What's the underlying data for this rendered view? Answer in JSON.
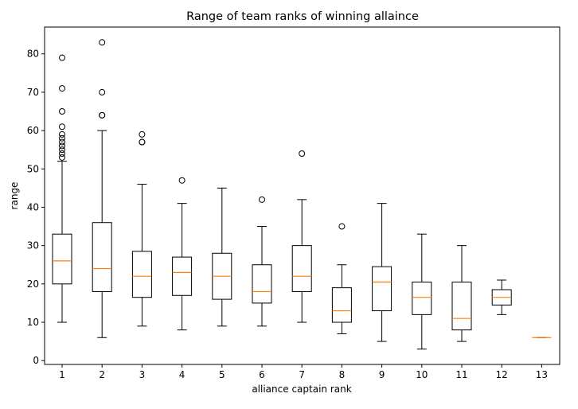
{
  "chart_data": {
    "type": "boxplot",
    "title": "Range of team ranks of winning allaince",
    "xlabel": "alliance captain rank",
    "ylabel": "range",
    "ylim": [
      -1,
      87
    ],
    "yticks": [
      0,
      10,
      20,
      30,
      40,
      50,
      60,
      70,
      80
    ],
    "grid": false,
    "box_color": "#000000",
    "median_color": "#ff7f0e",
    "categories": [
      "1",
      "2",
      "3",
      "4",
      "5",
      "6",
      "7",
      "8",
      "9",
      "10",
      "11",
      "12",
      "13"
    ],
    "boxes": [
      {
        "category": "1",
        "whisker_low": 10,
        "q1": 20,
        "median": 26,
        "q3": 33,
        "whisker_high": 52,
        "outliers": [
          53,
          54,
          55,
          56,
          57,
          58,
          59,
          61,
          65,
          71,
          79
        ]
      },
      {
        "category": "2",
        "whisker_low": 6,
        "q1": 18,
        "median": 24,
        "q3": 36,
        "whisker_high": 60,
        "outliers": [
          64,
          64,
          70,
          83
        ]
      },
      {
        "category": "3",
        "whisker_low": 9,
        "q1": 16.5,
        "median": 22,
        "q3": 28.5,
        "whisker_high": 46,
        "outliers": [
          57,
          57,
          59
        ]
      },
      {
        "category": "4",
        "whisker_low": 8,
        "q1": 17,
        "median": 23,
        "q3": 27,
        "whisker_high": 41,
        "outliers": [
          47
        ]
      },
      {
        "category": "5",
        "whisker_low": 9,
        "q1": 16,
        "median": 22,
        "q3": 28,
        "whisker_high": 45,
        "outliers": []
      },
      {
        "category": "6",
        "whisker_low": 9,
        "q1": 15,
        "median": 18,
        "q3": 25,
        "whisker_high": 35,
        "outliers": [
          42
        ]
      },
      {
        "category": "7",
        "whisker_low": 10,
        "q1": 18,
        "median": 22,
        "q3": 30,
        "whisker_high": 42,
        "outliers": [
          54
        ]
      },
      {
        "category": "8",
        "whisker_low": 7,
        "q1": 10,
        "median": 13,
        "q3": 19,
        "whisker_high": 25,
        "outliers": [
          35
        ]
      },
      {
        "category": "9",
        "whisker_low": 5,
        "q1": 13,
        "median": 20.5,
        "q3": 24.5,
        "whisker_high": 41,
        "outliers": []
      },
      {
        "category": "10",
        "whisker_low": 3,
        "q1": 12,
        "median": 16.5,
        "q3": 20.5,
        "whisker_high": 33,
        "outliers": []
      },
      {
        "category": "11",
        "whisker_low": 5,
        "q1": 8,
        "median": 11,
        "q3": 20.5,
        "whisker_high": 30,
        "outliers": []
      },
      {
        "category": "12",
        "whisker_low": 12,
        "q1": 14.5,
        "median": 16.5,
        "q3": 18.5,
        "whisker_high": 21,
        "outliers": []
      },
      {
        "category": "13",
        "whisker_low": 6,
        "q1": 6,
        "median": 6,
        "q3": 6,
        "whisker_high": 6,
        "outliers": []
      }
    ]
  }
}
